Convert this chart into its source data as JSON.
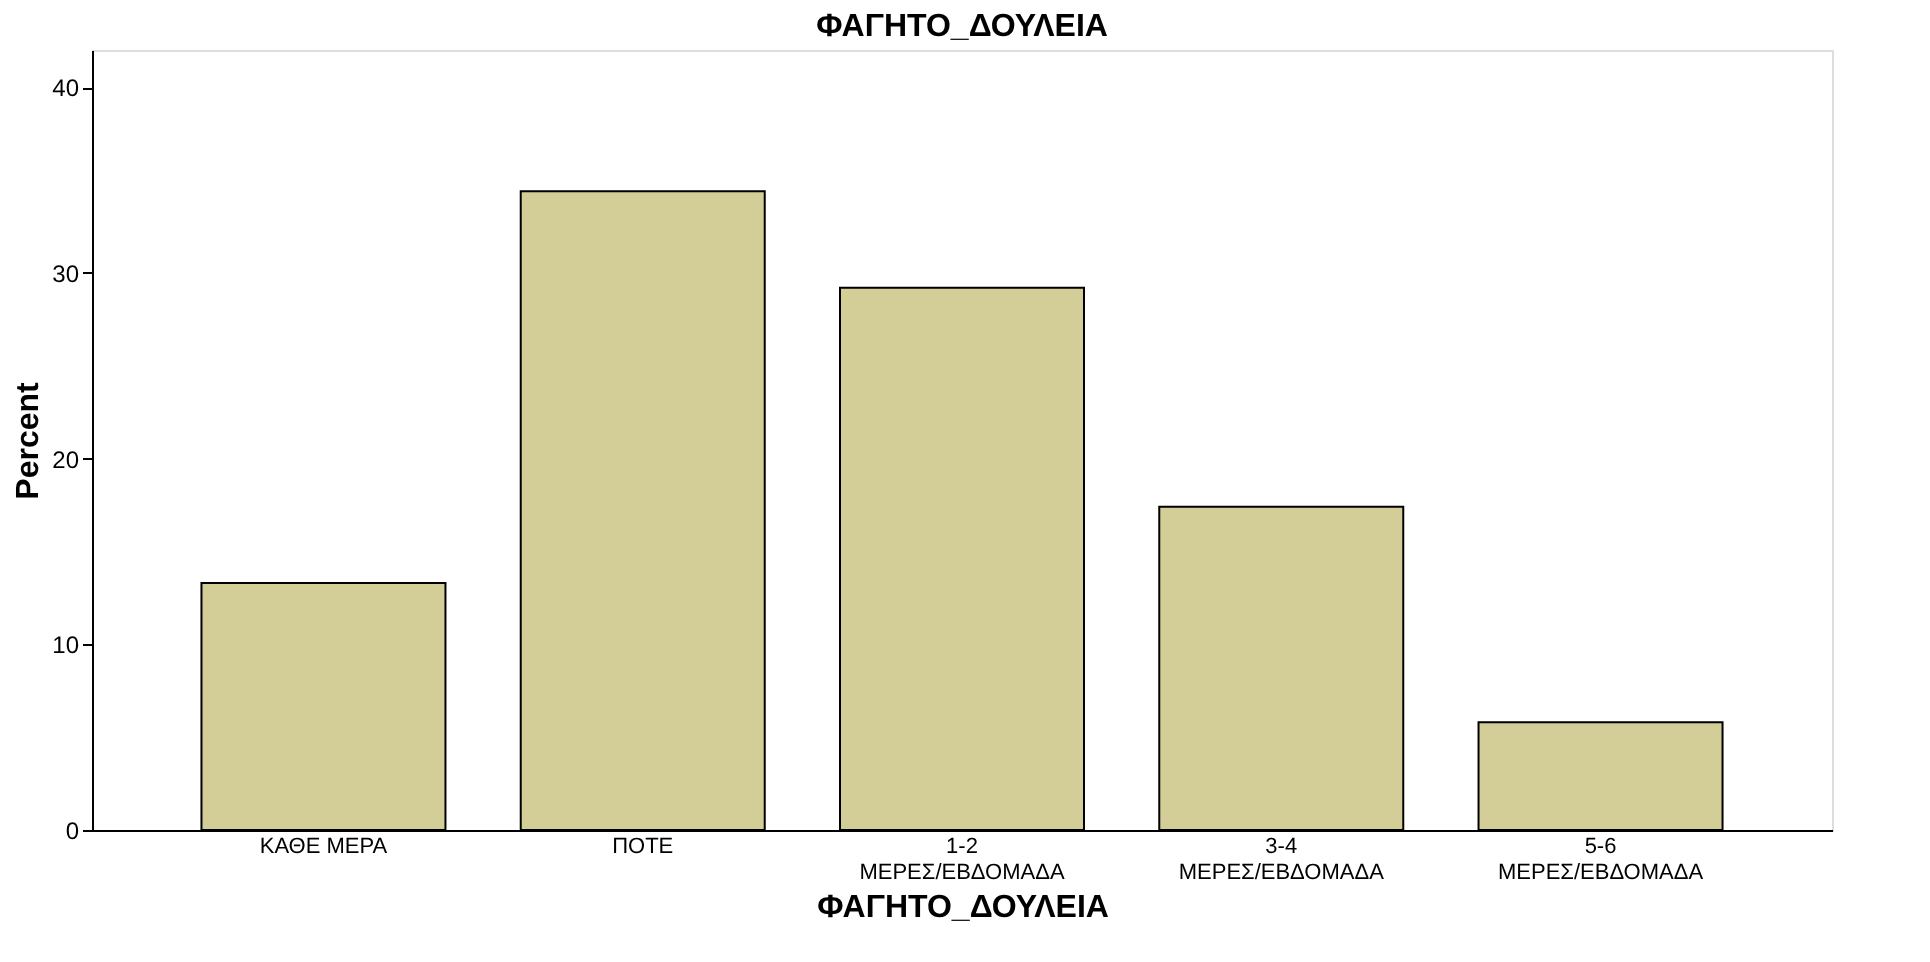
{
  "chart_data": {
    "type": "bar",
    "title": "ΦΑΓΗΤΟ_ΔΟΥΛΕΙΑ",
    "xlabel": "ΦΑΓΗΤΟ_ΔΟΥΛΕΙΑ",
    "ylabel": "Percent",
    "categories": [
      "ΚΑΘΕ ΜΕΡΑ",
      "ΠΟΤΕ",
      "1-2\nΜΕΡΕΣ/ΕΒΔΟΜΑΔΑ",
      "3-4\nΜΕΡΕΣ/ΕΒΔΟΜΑΔΑ",
      "5-6\nΜΕΡΕΣ/ΕΒΔΟΜΑΔΑ"
    ],
    "values": [
      13.3,
      34.4,
      29.2,
      17.4,
      5.8
    ],
    "color": "#d3cd97",
    "ylim": [
      0,
      42
    ],
    "yticks": [
      0,
      10,
      20,
      30,
      40
    ],
    "grid": false
  }
}
